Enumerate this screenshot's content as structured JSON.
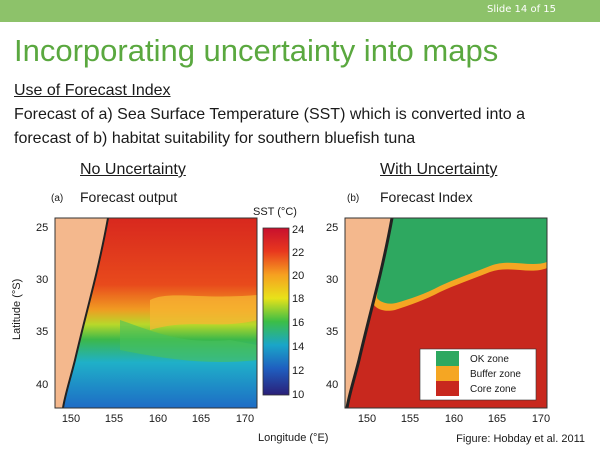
{
  "slide": {
    "counter": "Slide 14 of 15",
    "title": "Incorporating uncertainty into maps",
    "subheading": "Use of Forecast Index",
    "description_line1": "Forecast of a) Sea Surface Temperature (SST) which is converted into a",
    "description_line2": "forecast of b) habitat suitability for southern bluefish tuna",
    "left_header": "No Uncertainty",
    "right_header": "With Uncertainty",
    "left_sublabel": "Forecast output",
    "right_sublabel": "Forecast Index",
    "panel_a_tag": "(a)",
    "panel_b_tag": "(b)",
    "colorbar_title": "SST (°C)",
    "colorbar_ticks": [
      "24",
      "22",
      "20",
      "18",
      "16",
      "14",
      "12",
      "10"
    ],
    "lat_label": "Latitude (°S)",
    "lon_label": "Longitude (°E)",
    "lat_ticks": [
      "25",
      "30",
      "35",
      "40"
    ],
    "lon_ticks": [
      "150",
      "155",
      "160",
      "165",
      "170"
    ],
    "legend": [
      {
        "label": "OK zone",
        "color": "#2ea860"
      },
      {
        "label": "Buffer zone",
        "color": "#f5a623"
      },
      {
        "label": "Core zone",
        "color": "#c8281e"
      }
    ],
    "credit": "Figure: Hobday et al. 2011",
    "colors": {
      "accent_green": "#8dc26a",
      "title_green": "#5aa83f",
      "land": "#f4b88d"
    }
  }
}
